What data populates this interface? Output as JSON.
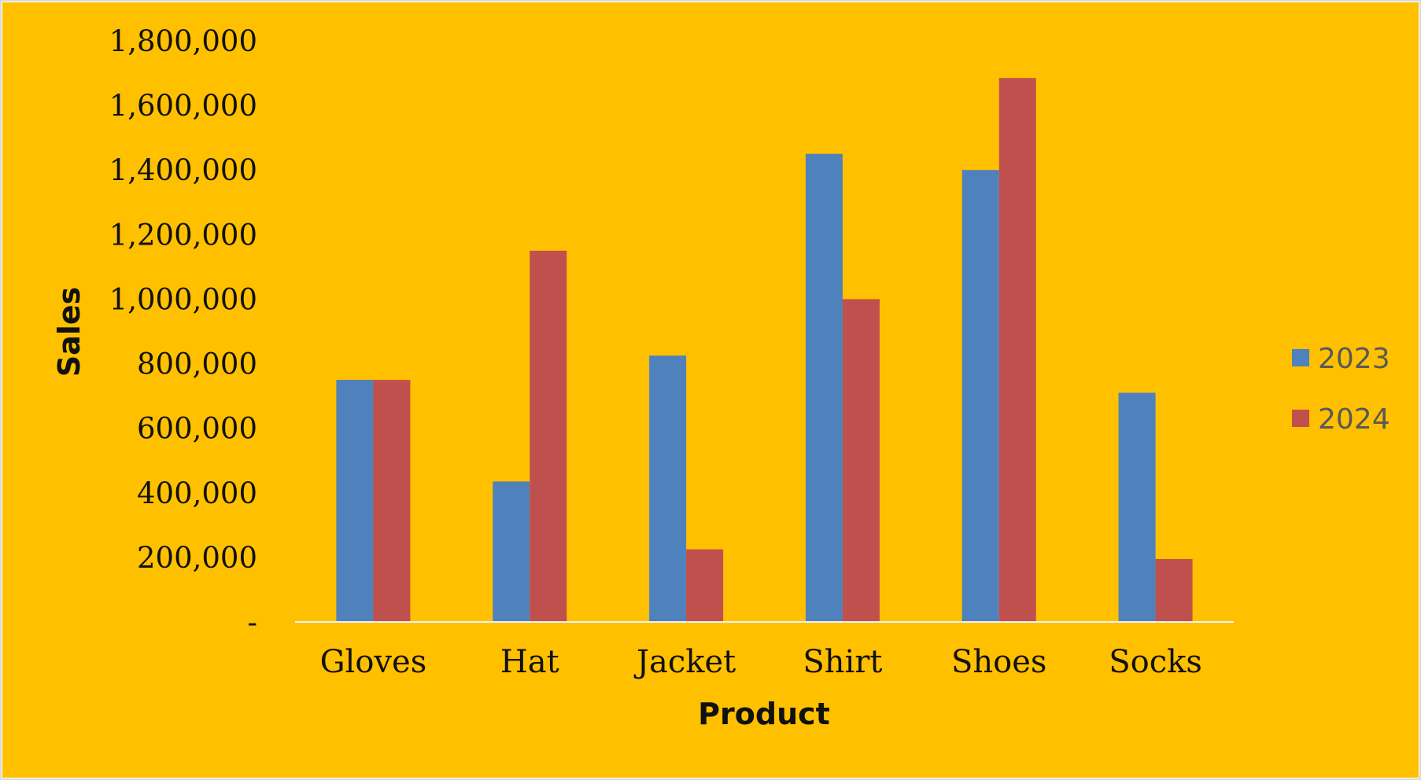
{
  "chart_data": {
    "type": "bar",
    "title": "",
    "xlabel": "Product",
    "ylabel": "Sales",
    "categories": [
      "Gloves",
      "Hat",
      "Jacket",
      "Shirt",
      "Shoes",
      "Socks"
    ],
    "series": [
      {
        "name": "2023",
        "color": "#4F81BD",
        "values": [
          750000,
          435000,
          825000,
          1450000,
          1400000,
          710000
        ]
      },
      {
        "name": "2024",
        "color": "#C0504D",
        "values": [
          750000,
          1150000,
          225000,
          1000000,
          1685000,
          195000
        ]
      }
    ],
    "ylim": [
      0,
      1800000
    ],
    "yticks": [
      {
        "value": 0,
        "label": "-"
      },
      {
        "value": 200000,
        "label": "200,000"
      },
      {
        "value": 400000,
        "label": "400,000"
      },
      {
        "value": 600000,
        "label": "600,000"
      },
      {
        "value": 800000,
        "label": "800,000"
      },
      {
        "value": 1000000,
        "label": "1,000,000"
      },
      {
        "value": 1200000,
        "label": "1,200,000"
      },
      {
        "value": 1400000,
        "label": "1,400,000"
      },
      {
        "value": 1600000,
        "label": "1,600,000"
      },
      {
        "value": 1800000,
        "label": "1,800,000"
      }
    ],
    "grid": false,
    "legend_position": "right",
    "background_color": "#FFC000",
    "axis_line_color": "#F2F2F2"
  }
}
